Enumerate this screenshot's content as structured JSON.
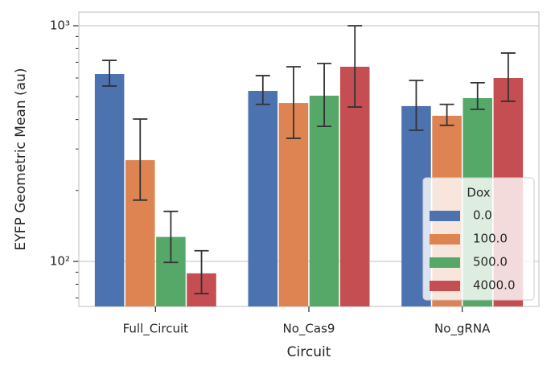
{
  "chart_data": {
    "type": "bar",
    "xlabel": "Circuit",
    "ylabel": "EYFP Geometric Mean (au)",
    "categories": [
      "Full_Circuit",
      "No_Cas9",
      "No_gRNA"
    ],
    "legend_title": "Dox",
    "legend": "lower right",
    "log_scale_y": true,
    "grid": true,
    "ylim": [
      64.4,
      1143
    ],
    "yticks": [
      {
        "value": 100,
        "label": "10²"
      },
      {
        "value": 1000,
        "label": "10³"
      }
    ],
    "yminorticks": [
      70,
      80,
      90,
      200,
      300,
      400,
      500,
      600,
      700,
      800,
      900
    ],
    "series": [
      {
        "name": "0.0",
        "color": "#4c72b0",
        "values": [
          624,
          529,
          456
        ],
        "ci_low": [
          555,
          464,
          360
        ],
        "ci_high": [
          713,
          614,
          586
        ]
      },
      {
        "name": "100.0",
        "color": "#dd8452",
        "values": [
          269,
          470,
          415
        ],
        "ci_low": [
          182,
          333,
          378
        ],
        "ci_high": [
          402,
          670,
          464
        ]
      },
      {
        "name": "500.0",
        "color": "#55a868",
        "values": [
          127,
          505,
          493
        ],
        "ci_low": [
          99,
          374,
          442
        ],
        "ci_high": [
          163,
          692,
          573
        ]
      },
      {
        "name": "4000.0",
        "color": "#c44e52",
        "values": [
          89,
          670,
          600
        ],
        "ci_low": [
          73,
          452,
          478
        ],
        "ci_high": [
          111,
          1000,
          766
        ]
      }
    ]
  }
}
